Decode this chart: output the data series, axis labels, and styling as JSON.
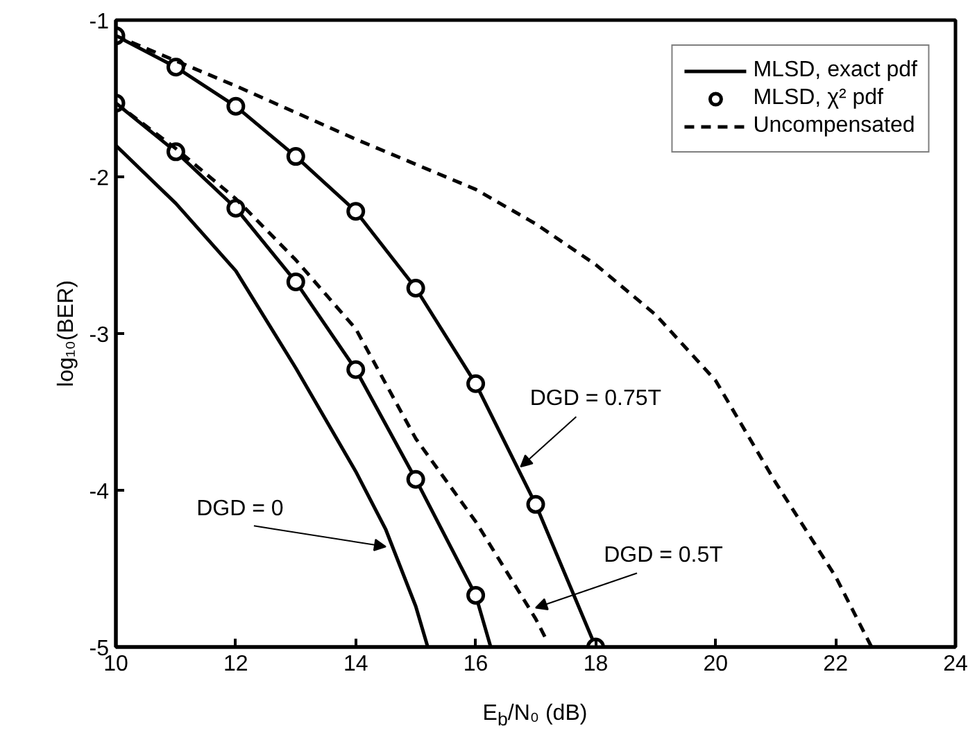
{
  "chart_data": {
    "type": "line",
    "xlabel": "E$_{b}$/N₀ (dB)",
    "ylabel": "log₁₀(BER)",
    "xlim": [
      10,
      24
    ],
    "ylim": [
      -5,
      -1
    ],
    "xticks": [
      10,
      12,
      14,
      16,
      18,
      20,
      22,
      24
    ],
    "yticks": [
      -1,
      -2,
      -3,
      -4,
      -5
    ],
    "grid": false,
    "legend": "top right",
    "series": [
      {
        "name": "MLSD, exact pdf",
        "type": "line",
        "color": "#000000",
        "line_style": "solid",
        "x": [
          10,
          11,
          12,
          13,
          14,
          14.5,
          15,
          15.2
        ],
        "values": [
          -1.8,
          -2.17,
          -2.6,
          -3.22,
          -3.88,
          -4.25,
          -4.74,
          -5.0
        ]
      },
      {
        "type": "line",
        "color": "#000000",
        "line_style": "solid",
        "x": [
          10,
          11,
          12,
          13,
          14,
          15,
          16,
          16.25
        ],
        "values": [
          -1.53,
          -1.84,
          -2.2,
          -2.67,
          -3.23,
          -3.93,
          -4.67,
          -5.0
        ]
      },
      {
        "type": "line",
        "color": "#000000",
        "line_style": "solid",
        "x": [
          10,
          11,
          12,
          13,
          14,
          15,
          16,
          17,
          18
        ],
        "values": [
          -1.1,
          -1.3,
          -1.55,
          -1.87,
          -2.22,
          -2.71,
          -3.32,
          -4.09,
          -5.0
        ]
      },
      {
        "name": "MLSD, χ² pdf",
        "type": "scatter",
        "color": "#000000",
        "marker": "circle",
        "x": [
          10,
          11,
          12,
          13,
          14,
          15,
          16
        ],
        "values": [
          -1.53,
          -1.84,
          -2.2,
          -2.67,
          -3.23,
          -3.93,
          -4.67
        ]
      },
      {
        "type": "scatter",
        "color": "#000000",
        "marker": "circle",
        "x": [
          10,
          11,
          12,
          13,
          14,
          15,
          16,
          17,
          18
        ],
        "values": [
          -1.1,
          -1.3,
          -1.55,
          -1.87,
          -2.22,
          -2.71,
          -3.32,
          -4.09,
          -5.0
        ]
      },
      {
        "name": "Uncompensated",
        "type": "line",
        "color": "#000000",
        "line_style": "dashed",
        "x": [
          10,
          11,
          12,
          13,
          14,
          15,
          16,
          17,
          17.2
        ],
        "values": [
          -1.53,
          -1.82,
          -2.14,
          -2.53,
          -2.97,
          -3.67,
          -4.2,
          -4.82,
          -4.97
        ]
      },
      {
        "type": "line",
        "color": "#000000",
        "line_style": "dashed",
        "x": [
          10,
          12,
          14,
          16,
          17,
          18,
          19,
          20,
          21,
          22,
          22.6
        ],
        "values": [
          -1.1,
          -1.42,
          -1.76,
          -2.08,
          -2.3,
          -2.56,
          -2.88,
          -3.3,
          -3.95,
          -4.55,
          -5.0
        ]
      }
    ],
    "annotations": [
      {
        "text": "DGD = 0",
        "x": 14.5,
        "y": -4.36
      },
      {
        "text": "DGD = 0.75T",
        "x": 16.75,
        "y": -3.85
      },
      {
        "text": "DGD = 0.5T",
        "x": 17.0,
        "y": -4.75
      }
    ]
  }
}
